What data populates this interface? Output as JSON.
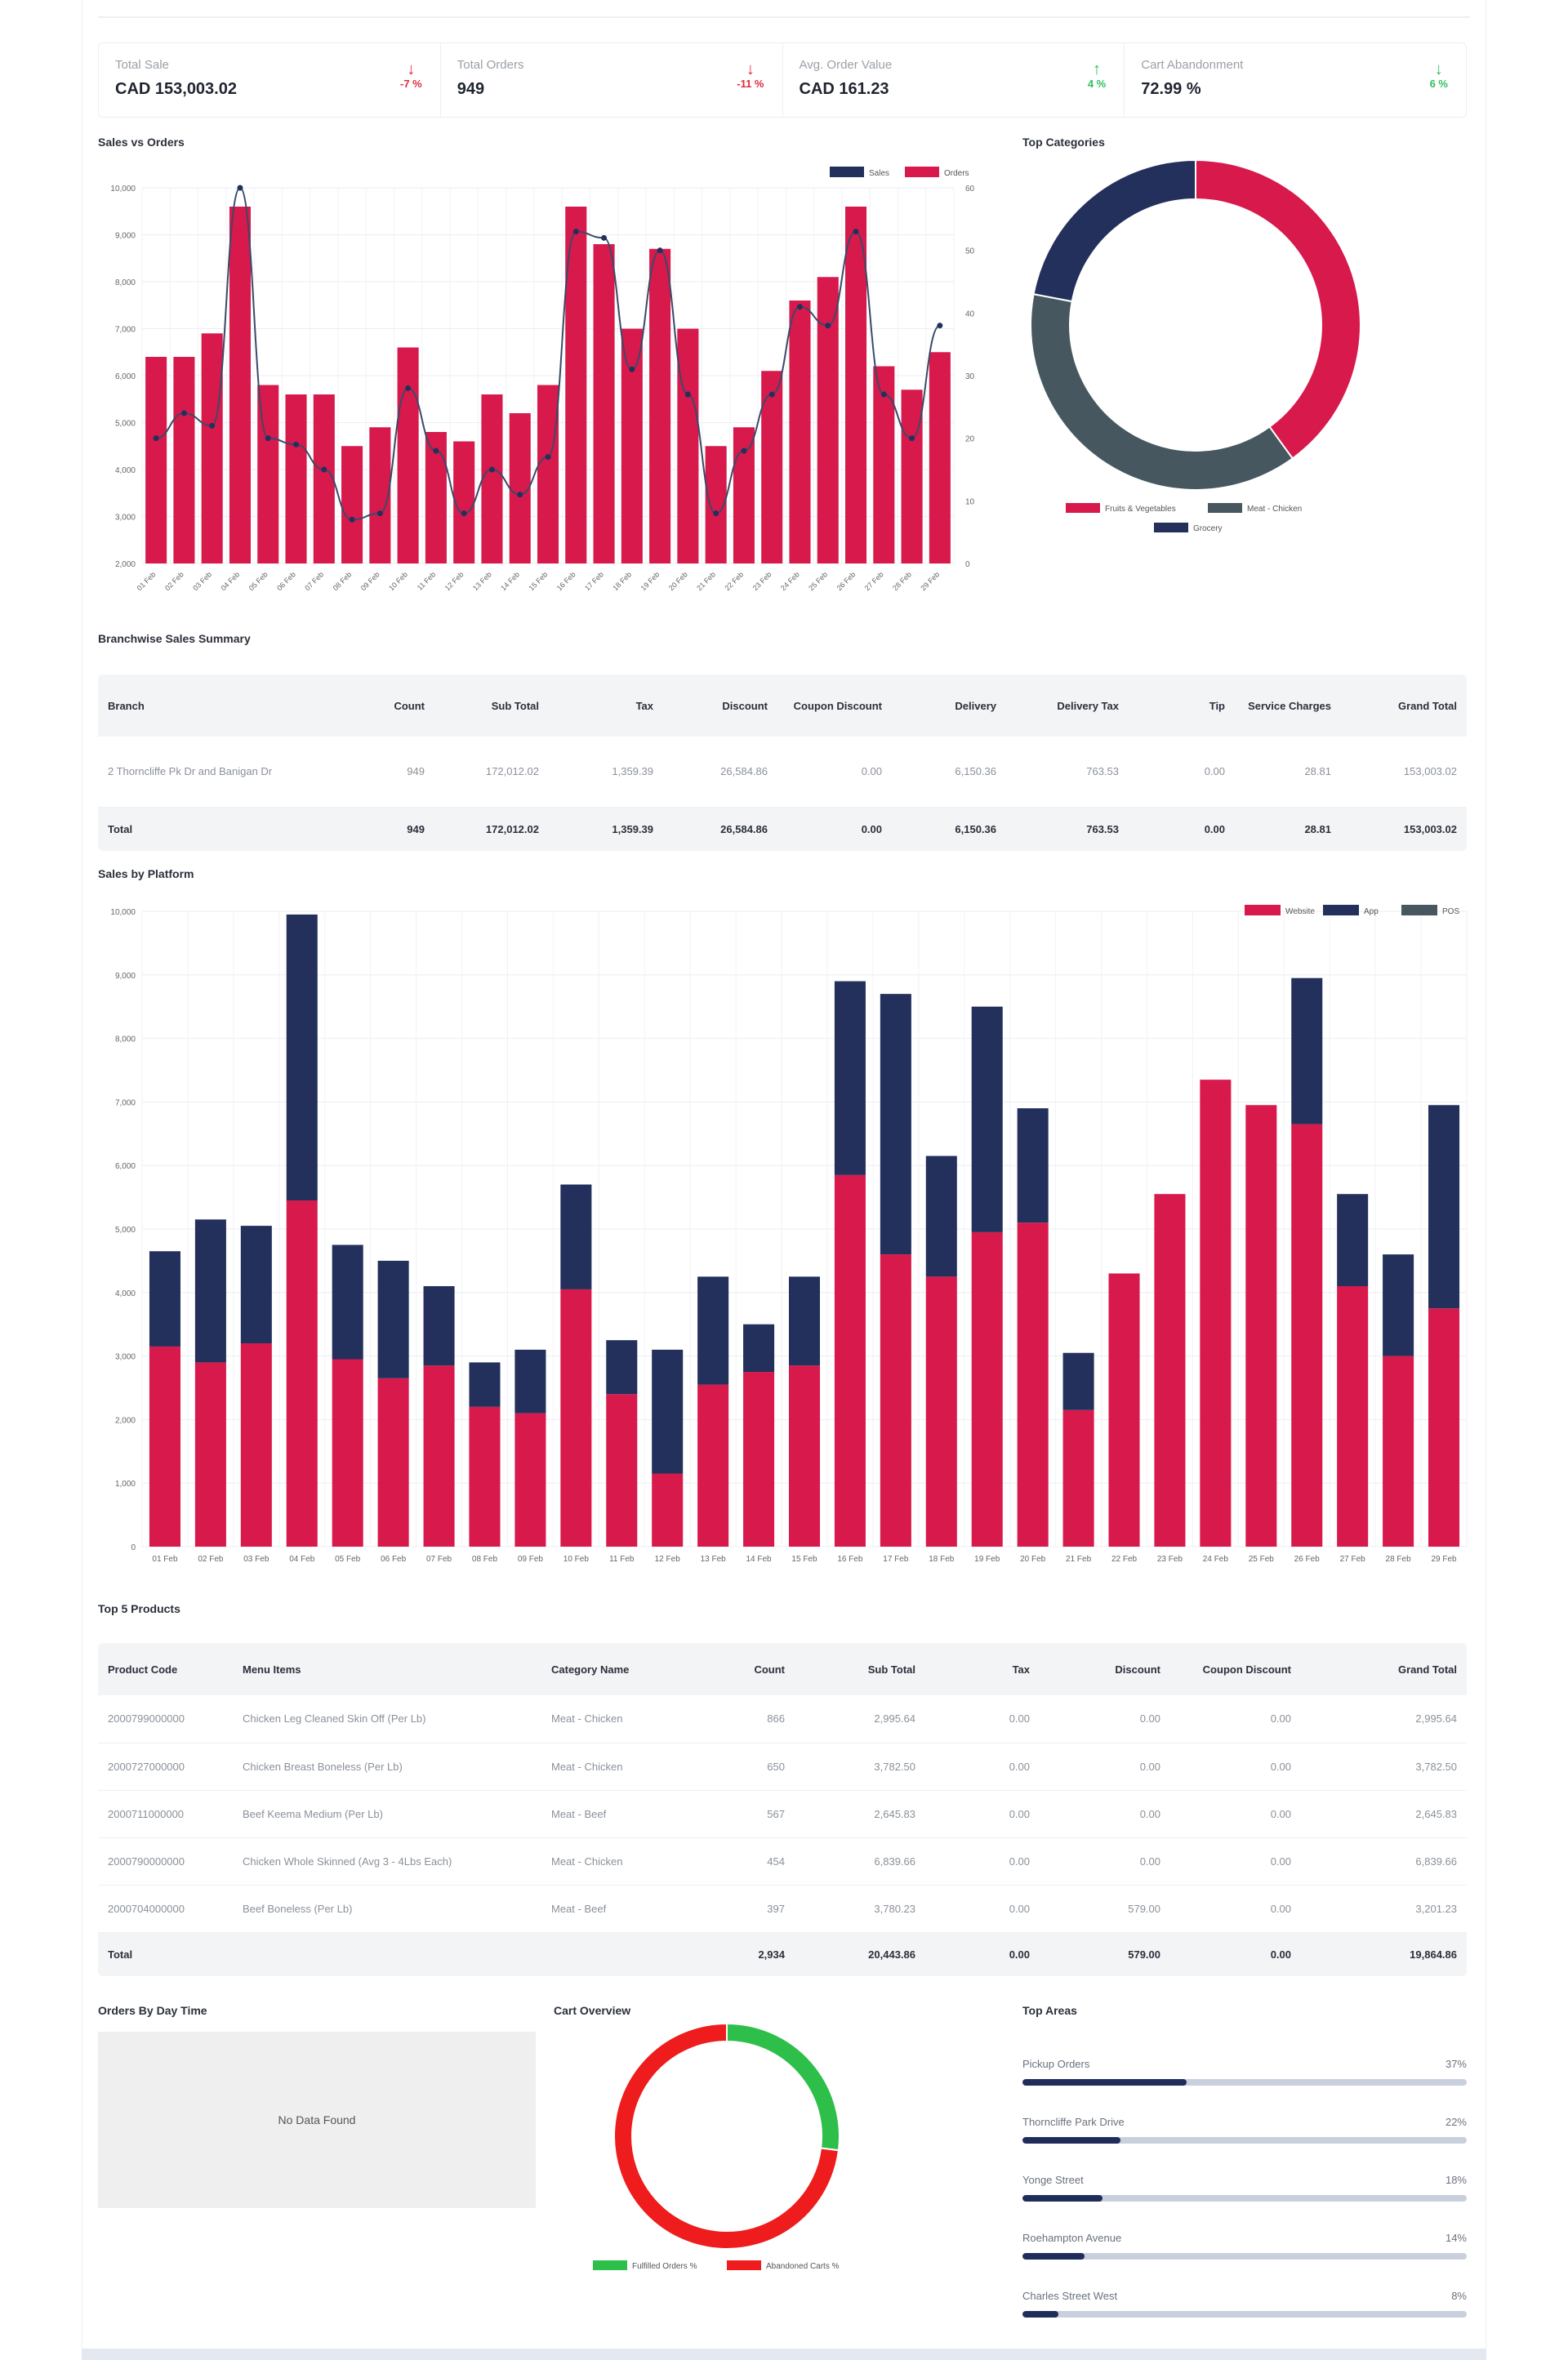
{
  "kpis": [
    {
      "label": "Total Sale",
      "value": "CAD 153,003.02",
      "trend": "-7 %",
      "direction": "down"
    },
    {
      "label": "Total Orders",
      "value": "949",
      "trend": "-11 %",
      "direction": "down"
    },
    {
      "label": "Avg. Order Value",
      "value": "CAD 161.23",
      "trend": "4 %",
      "direction": "up"
    },
    {
      "label": "Cart Abandonment",
      "value": "72.99 %",
      "trend": "6 %",
      "direction": "up"
    }
  ],
  "sections": {
    "sales_vs_orders": "Sales vs Orders",
    "top_categories": "Top Categories",
    "branchwise": "Branchwise Sales Summary",
    "sales_by_platform": "Sales by Platform",
    "top5": "Top 5 Products",
    "orders_by_day": "Orders By Day Time",
    "cart_overview": "Cart Overview",
    "top_areas": "Top Areas"
  },
  "no_data": "No Data Found",
  "colors": {
    "crimson": "#d7194b",
    "navy": "#23305c",
    "slate": "#46575f",
    "green": "#2dbf4a",
    "red": "#ee1c1c"
  },
  "chart_data": [
    {
      "type": "bar",
      "title": "Sales vs Orders",
      "categories": [
        "01 Feb",
        "02 Feb",
        "03 Feb",
        "04 Feb",
        "05 Feb",
        "06 Feb",
        "07 Feb",
        "08 Feb",
        "09 Feb",
        "10 Feb",
        "11 Feb",
        "12 Feb",
        "13 Feb",
        "14 Feb",
        "15 Feb",
        "16 Feb",
        "17 Feb",
        "18 Feb",
        "19 Feb",
        "20 Feb",
        "21 Feb",
        "22 Feb",
        "23 Feb",
        "24 Feb",
        "25 Feb",
        "26 Feb",
        "27 Feb",
        "28 Feb",
        "29 Feb"
      ],
      "series": [
        {
          "name": "Sales",
          "type": "line",
          "axis": "right",
          "values": [
            20,
            24,
            22,
            60,
            20,
            19,
            15,
            7,
            8,
            28,
            18,
            8,
            15,
            11,
            17,
            53,
            52,
            31,
            50,
            27,
            8,
            18,
            27,
            41,
            38,
            53,
            27,
            20,
            38
          ]
        },
        {
          "name": "Orders",
          "type": "bar",
          "axis": "left",
          "values": [
            6400,
            6400,
            6900,
            9600,
            5800,
            5600,
            5600,
            4500,
            4900,
            6600,
            4800,
            4600,
            5600,
            5200,
            5800,
            9600,
            8800,
            7000,
            8700,
            7000,
            4500,
            4900,
            6100,
            7600,
            8100,
            9600,
            6200,
            5700,
            6500
          ]
        }
      ],
      "left_ticks": [
        "2,000",
        "3,000",
        "4,000",
        "5,000",
        "6,000",
        "7,000",
        "8,000",
        "9,000",
        "10,000"
      ],
      "right_ticks": [
        "0",
        "10",
        "20",
        "30",
        "40",
        "50",
        "60"
      ],
      "ylim": [
        2000,
        10000
      ],
      "y2lim": [
        0,
        60
      ],
      "legend_position": "top-right"
    },
    {
      "type": "pie",
      "title": "Top Categories",
      "labels": [
        "Fruits & Vegetables",
        "Meat - Chicken",
        "Grocery"
      ],
      "values": [
        40,
        38,
        22
      ],
      "colors": [
        "#d7194b",
        "#46575f",
        "#23305c"
      ],
      "legend_position": "bottom"
    },
    {
      "type": "bar",
      "stacked": true,
      "title": "Sales by Platform",
      "categories": [
        "01 Feb",
        "02 Feb",
        "03 Feb",
        "04 Feb",
        "05 Feb",
        "06 Feb",
        "07 Feb",
        "08 Feb",
        "09 Feb",
        "10 Feb",
        "11 Feb",
        "12 Feb",
        "13 Feb",
        "14 Feb",
        "15 Feb",
        "16 Feb",
        "17 Feb",
        "18 Feb",
        "19 Feb",
        "20 Feb",
        "21 Feb",
        "22 Feb",
        "23 Feb",
        "24 Feb",
        "25 Feb",
        "26 Feb",
        "27 Feb",
        "28 Feb",
        "29 Feb"
      ],
      "series": [
        {
          "name": "Website",
          "values": [
            3150,
            2900,
            3200,
            5450,
            2950,
            2650,
            2850,
            2200,
            2100,
            4050,
            2400,
            1150,
            2550,
            2750,
            2850,
            5850,
            4600,
            4250,
            4950,
            5100,
            2150,
            4300,
            5550,
            7350,
            6950,
            6650,
            4100,
            3000,
            3750
          ]
        },
        {
          "name": "App",
          "values": [
            1500,
            2250,
            1850,
            4500,
            1800,
            1850,
            1250,
            700,
            1000,
            1650,
            850,
            1950,
            1700,
            750,
            1400,
            3050,
            4100,
            1900,
            3550,
            1800,
            900,
            0,
            0,
            0,
            0,
            2300,
            1450,
            1600,
            3200
          ]
        },
        {
          "name": "POS",
          "values": [
            0,
            0,
            0,
            0,
            0,
            0,
            0,
            0,
            0,
            0,
            0,
            0,
            0,
            0,
            0,
            0,
            0,
            0,
            0,
            0,
            0,
            0,
            0,
            0,
            0,
            0,
            0,
            0,
            0
          ]
        }
      ],
      "ticks": [
        "0",
        "1,000",
        "2,000",
        "3,000",
        "4,000",
        "5,000",
        "6,000",
        "7,000",
        "8,000",
        "9,000",
        "10,000"
      ],
      "ylim": [
        0,
        10000
      ],
      "legend_position": "top-right"
    },
    {
      "type": "pie",
      "title": "Cart Overview",
      "labels": [
        "Fulfilled Orders %",
        "Abandoned Carts %"
      ],
      "values": [
        27,
        73
      ],
      "colors": [
        "#2dbf4a",
        "#ee1c1c"
      ],
      "legend_position": "bottom"
    }
  ],
  "branch_table": {
    "headers": [
      "Branch",
      "Count",
      "Sub Total",
      "Tax",
      "Discount",
      "Coupon Discount",
      "Delivery",
      "Delivery Tax",
      "Tip",
      "Service Charges",
      "Grand Total"
    ],
    "rows": [
      [
        "2 Thorncliffe Pk Dr and Banigan Dr",
        "949",
        "172,012.02",
        "1,359.39",
        "26,584.86",
        "0.00",
        "6,150.36",
        "763.53",
        "0.00",
        "28.81",
        "153,003.02"
      ]
    ],
    "total": [
      "Total",
      "949",
      "172,012.02",
      "1,359.39",
      "26,584.86",
      "0.00",
      "6,150.36",
      "763.53",
      "0.00",
      "28.81",
      "153,003.02"
    ]
  },
  "top5_table": {
    "headers": [
      "Product Code",
      "Menu Items",
      "Category Name",
      "Count",
      "Sub Total",
      "Tax",
      "Discount",
      "Coupon Discount",
      "Grand Total"
    ],
    "rows": [
      [
        "2000799000000",
        "Chicken Leg Cleaned Skin Off (Per Lb)",
        "Meat - Chicken",
        "866",
        "2,995.64",
        "0.00",
        "0.00",
        "0.00",
        "2,995.64"
      ],
      [
        "2000727000000",
        "Chicken Breast Boneless (Per Lb)",
        "Meat - Chicken",
        "650",
        "3,782.50",
        "0.00",
        "0.00",
        "0.00",
        "3,782.50"
      ],
      [
        "2000711000000",
        "Beef Keema Medium (Per Lb)",
        "Meat - Beef",
        "567",
        "2,645.83",
        "0.00",
        "0.00",
        "0.00",
        "2,645.83"
      ],
      [
        "2000790000000",
        "Chicken Whole Skinned (Avg 3 - 4Lbs Each)",
        "Meat - Chicken",
        "454",
        "6,839.66",
        "0.00",
        "0.00",
        "0.00",
        "6,839.66"
      ],
      [
        "2000704000000",
        "Beef Boneless (Per Lb)",
        "Meat - Beef",
        "397",
        "3,780.23",
        "0.00",
        "579.00",
        "0.00",
        "3,201.23"
      ]
    ],
    "total": [
      "Total",
      "",
      "",
      "2,934",
      "20,443.86",
      "0.00",
      "579.00",
      "0.00",
      "19,864.86"
    ]
  },
  "top_areas": [
    {
      "name": "Pickup Orders",
      "pct": "37%",
      "value": 37
    },
    {
      "name": "Thorncliffe Park Drive",
      "pct": "22%",
      "value": 22
    },
    {
      "name": "Yonge Street",
      "pct": "18%",
      "value": 18
    },
    {
      "name": "Roehampton Avenue",
      "pct": "14%",
      "value": 14
    },
    {
      "name": "Charles Street West",
      "pct": "8%",
      "value": 8
    }
  ]
}
